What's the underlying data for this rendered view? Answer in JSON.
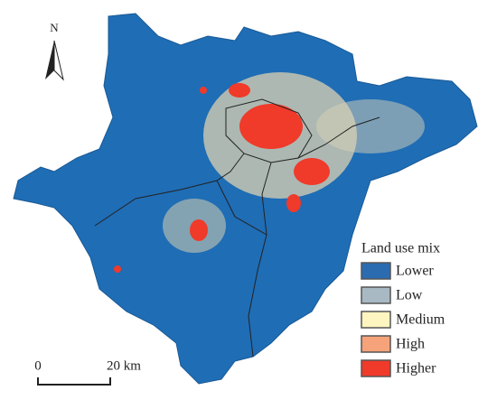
{
  "north_arrow": {
    "label": "N"
  },
  "legend": {
    "title": "Land use mix",
    "items": [
      {
        "label": "Lower",
        "color": "#2b6cb0"
      },
      {
        "label": "Low",
        "color": "#a9b9c4"
      },
      {
        "label": "Medium",
        "color": "#fff5c0"
      },
      {
        "label": "High",
        "color": "#f6a27a"
      },
      {
        "label": "Higher",
        "color": "#f03a2a"
      }
    ]
  },
  "scale_bar": {
    "start": "0",
    "end": "20 km"
  }
}
